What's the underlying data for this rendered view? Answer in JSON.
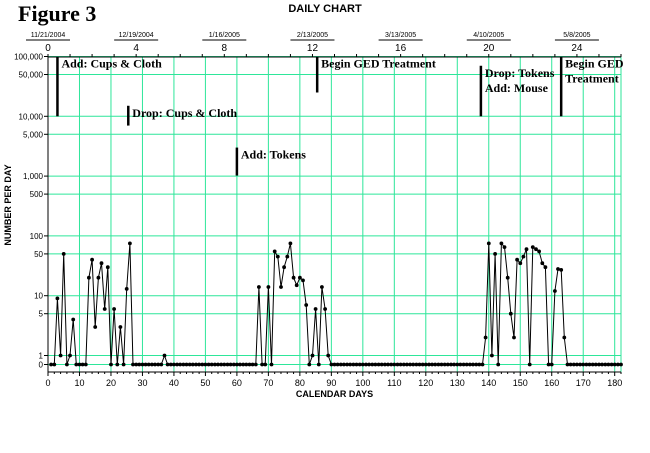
{
  "figure_label": "Figure 3",
  "chart_data": {
    "type": "line",
    "title": "DAILY CHART",
    "xlabel": "CALENDAR DAYS",
    "ylabel": "NUMBER PER DAY",
    "y_scale": "log",
    "ylim": [
      0,
      100000
    ],
    "xlim": [
      0,
      182
    ],
    "grid": true,
    "x_ticks": [
      0,
      10,
      20,
      30,
      40,
      50,
      60,
      70,
      80,
      90,
      100,
      110,
      120,
      130,
      140,
      150,
      160,
      170,
      180
    ],
    "y_ticks": [
      {
        "value": 0,
        "label": "0"
      },
      {
        "value": 1,
        "label": "1"
      },
      {
        "value": 5,
        "label": "5"
      },
      {
        "value": 10,
        "label": "10"
      },
      {
        "value": 50,
        "label": "50"
      },
      {
        "value": 100,
        "label": "100"
      },
      {
        "value": 500,
        "label": "500"
      },
      {
        "value": 1000,
        "label": "1,000"
      },
      {
        "value": 5000,
        "label": "5,000"
      },
      {
        "value": 10000,
        "label": "10,000"
      },
      {
        "value": 50000,
        "label": "50,000"
      },
      {
        "value": 100000,
        "label": "100,000"
      }
    ],
    "week_ticks": [
      {
        "day": 0,
        "label": "0",
        "date": "11/21/2004"
      },
      {
        "day": 28,
        "label": "4",
        "date": "12/19/2004"
      },
      {
        "day": 56,
        "label": "8",
        "date": "1/16/2005"
      },
      {
        "day": 84,
        "label": "12",
        "date": "2/13/2005"
      },
      {
        "day": 112,
        "label": "16",
        "date": "3/13/2005"
      },
      {
        "day": 140,
        "label": "20",
        "date": "4/10/2005"
      },
      {
        "day": 168,
        "label": "24",
        "date": "5/8/2005"
      }
    ],
    "phase_changes": [
      {
        "x": 3,
        "y_top": 100000,
        "y_bottom": 10000,
        "text": [
          "Add: Cups & Cloth"
        ]
      },
      {
        "x": 25.5,
        "y_top": 15000,
        "y_bottom": 7000,
        "text": [
          "Drop: Cups & Cloth"
        ]
      },
      {
        "x": 60,
        "y_top": 3000,
        "y_bottom": 3000,
        "text": [
          "Add: Tokens"
        ]
      },
      {
        "x": 85.5,
        "y_top": 100000,
        "y_bottom": 25000,
        "text": [
          "Begin GED Treatment"
        ]
      },
      {
        "x": 137.5,
        "y_top": 70000,
        "y_bottom": 10000,
        "text": [
          "Drop: Tokens",
          "Add: Mouse"
        ]
      },
      {
        "x": 163,
        "y_top": 100000,
        "y_bottom": 10000,
        "text": [
          "Begin GED",
          "Treatment"
        ]
      }
    ],
    "series": [
      {
        "points": [
          [
            1,
            0
          ],
          [
            2,
            0
          ],
          [
            3,
            9
          ],
          [
            4,
            1
          ],
          [
            5,
            50
          ],
          [
            6,
            0
          ],
          [
            7,
            1
          ],
          [
            8,
            4
          ],
          [
            9,
            0
          ],
          [
            10,
            0
          ],
          [
            11,
            0
          ],
          [
            12,
            0
          ],
          [
            13,
            20
          ],
          [
            14,
            40
          ],
          [
            15,
            3
          ],
          [
            16,
            20
          ],
          [
            17,
            35
          ],
          [
            18,
            6
          ],
          [
            19,
            30
          ],
          [
            20,
            0
          ],
          [
            21,
            6
          ],
          [
            22,
            0
          ],
          [
            23,
            3
          ],
          [
            24,
            0
          ],
          [
            25,
            13
          ],
          [
            26,
            75
          ],
          [
            27,
            0
          ],
          [
            28,
            0
          ],
          [
            29,
            0
          ],
          [
            30,
            0
          ],
          [
            31,
            0
          ],
          [
            32,
            0
          ],
          [
            33,
            0
          ],
          [
            34,
            0
          ],
          [
            35,
            0
          ],
          [
            36,
            0
          ],
          [
            37,
            1
          ],
          [
            38,
            0
          ],
          [
            39,
            0
          ],
          [
            40,
            0
          ],
          [
            41,
            0
          ],
          [
            42,
            0
          ],
          [
            43,
            0
          ],
          [
            44,
            0
          ],
          [
            45,
            0
          ],
          [
            46,
            0
          ],
          [
            47,
            0
          ],
          [
            48,
            0
          ],
          [
            49,
            0
          ],
          [
            50,
            0
          ],
          [
            51,
            0
          ],
          [
            52,
            0
          ],
          [
            53,
            0
          ],
          [
            54,
            0
          ],
          [
            55,
            0
          ],
          [
            56,
            0
          ],
          [
            57,
            0
          ],
          [
            58,
            0
          ],
          [
            59,
            0
          ],
          [
            60,
            0
          ],
          [
            61,
            0
          ],
          [
            62,
            0
          ],
          [
            63,
            0
          ],
          [
            64,
            0
          ],
          [
            65,
            0
          ],
          [
            66,
            0
          ],
          [
            67,
            14
          ],
          [
            68,
            0
          ],
          [
            69,
            0
          ],
          [
            70,
            14
          ],
          [
            71,
            0
          ],
          [
            72,
            55
          ],
          [
            73,
            45
          ],
          [
            74,
            14
          ],
          [
            75,
            30
          ],
          [
            76,
            45
          ],
          [
            77,
            75
          ],
          [
            78,
            20
          ],
          [
            79,
            15
          ],
          [
            80,
            20
          ],
          [
            81,
            18
          ],
          [
            82,
            7
          ],
          [
            83,
            0
          ],
          [
            84,
            1
          ],
          [
            85,
            6
          ],
          [
            86,
            0
          ],
          [
            87,
            14
          ],
          [
            88,
            6
          ],
          [
            89,
            1
          ],
          [
            90,
            0
          ],
          [
            91,
            0
          ],
          [
            92,
            0
          ],
          [
            93,
            0
          ],
          [
            94,
            0
          ],
          [
            95,
            0
          ],
          [
            96,
            0
          ],
          [
            97,
            0
          ],
          [
            98,
            0
          ],
          [
            99,
            0
          ],
          [
            100,
            0
          ],
          [
            101,
            0
          ],
          [
            102,
            0
          ],
          [
            103,
            0
          ],
          [
            104,
            0
          ],
          [
            105,
            0
          ],
          [
            106,
            0
          ],
          [
            107,
            0
          ],
          [
            108,
            0
          ],
          [
            109,
            0
          ],
          [
            110,
            0
          ],
          [
            111,
            0
          ],
          [
            112,
            0
          ],
          [
            113,
            0
          ],
          [
            114,
            0
          ],
          [
            115,
            0
          ],
          [
            116,
            0
          ],
          [
            117,
            0
          ],
          [
            118,
            0
          ],
          [
            119,
            0
          ],
          [
            120,
            0
          ],
          [
            121,
            0
          ],
          [
            122,
            0
          ],
          [
            123,
            0
          ],
          [
            124,
            0
          ],
          [
            125,
            0
          ],
          [
            126,
            0
          ],
          [
            127,
            0
          ],
          [
            128,
            0
          ],
          [
            129,
            0
          ],
          [
            130,
            0
          ],
          [
            131,
            0
          ],
          [
            132,
            0
          ],
          [
            133,
            0
          ],
          [
            134,
            0
          ],
          [
            135,
            0
          ],
          [
            136,
            0
          ],
          [
            137,
            0
          ],
          [
            138,
            0
          ],
          [
            139,
            2
          ],
          [
            140,
            75
          ],
          [
            141,
            1
          ],
          [
            142,
            50
          ],
          [
            143,
            0
          ],
          [
            144,
            75
          ],
          [
            145,
            65
          ],
          [
            146,
            20
          ],
          [
            147,
            5
          ],
          [
            148,
            2
          ],
          [
            149,
            40
          ],
          [
            150,
            35
          ],
          [
            151,
            45
          ],
          [
            152,
            60
          ],
          [
            153,
            0
          ],
          [
            154,
            65
          ],
          [
            155,
            60
          ],
          [
            156,
            55
          ],
          [
            157,
            35
          ],
          [
            158,
            30
          ],
          [
            159,
            0
          ],
          [
            160,
            0
          ],
          [
            161,
            12
          ],
          [
            162,
            28
          ],
          [
            163,
            27
          ],
          [
            164,
            2
          ],
          [
            165,
            0
          ],
          [
            166,
            0
          ],
          [
            167,
            0
          ],
          [
            168,
            0
          ],
          [
            169,
            0
          ],
          [
            170,
            0
          ],
          [
            171,
            0
          ],
          [
            172,
            0
          ],
          [
            173,
            0
          ],
          [
            174,
            0
          ],
          [
            175,
            0
          ],
          [
            176,
            0
          ],
          [
            177,
            0
          ],
          [
            178,
            0
          ],
          [
            179,
            0
          ],
          [
            180,
            0
          ],
          [
            181,
            0
          ],
          [
            182,
            0
          ]
        ]
      }
    ],
    "colors": {
      "grid": "#2ee69a",
      "line": "#000000",
      "axis": "#000000"
    }
  }
}
